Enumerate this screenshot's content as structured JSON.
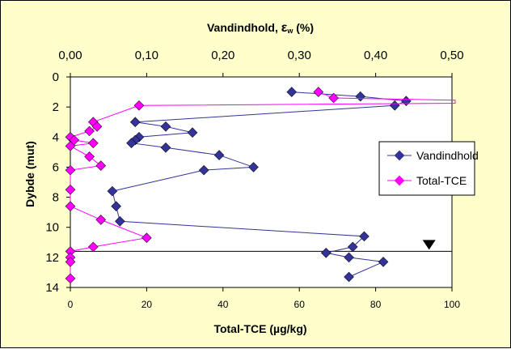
{
  "chart_data": {
    "type": "scatter",
    "title": "",
    "x2label_main": "Vandindhold, ",
    "x2label_symbol": "ε",
    "x2label_sub": "w",
    "x2label_unit": " (%)",
    "xlabel": "Total-TCE (µg/kg)",
    "ylabel": "Dybde (mut)",
    "ylim": [
      0,
      14
    ],
    "y_inverted": true,
    "yticks": [
      "0",
      "2",
      "4",
      "6",
      "8",
      "10",
      "12",
      "14"
    ],
    "xlim_top": [
      0,
      0.5
    ],
    "xticks_top": [
      "0,00",
      "0,10",
      "0,20",
      "0,30",
      "0,40",
      "0,50"
    ],
    "xlim_bottom": [
      0,
      100
    ],
    "xticks_bottom": [
      "0",
      "20",
      "40",
      "60",
      "80",
      "100"
    ],
    "legend_position": "right",
    "water_table_depth": 11.6,
    "water_table_x_top": 0.47,
    "series": [
      {
        "name": "Vandindhold",
        "axis": "top",
        "color": "#333399",
        "points": [
          {
            "x": 0.29,
            "y": 1.0
          },
          {
            "x": 0.38,
            "y": 1.3
          },
          {
            "x": 0.44,
            "y": 1.6
          },
          {
            "x": 0.425,
            "y": 1.9
          },
          {
            "x": 0.085,
            "y": 3.0
          },
          {
            "x": 0.125,
            "y": 3.3
          },
          {
            "x": 0.16,
            "y": 3.7
          },
          {
            "x": 0.09,
            "y": 4.0
          },
          {
            "x": 0.085,
            "y": 4.2
          },
          {
            "x": 0.08,
            "y": 4.4
          },
          {
            "x": 0.125,
            "y": 4.7
          },
          {
            "x": 0.195,
            "y": 5.2
          },
          {
            "x": 0.24,
            "y": 6.0
          },
          {
            "x": 0.175,
            "y": 6.2
          },
          {
            "x": 0.055,
            "y": 7.6
          },
          {
            "x": 0.06,
            "y": 8.6
          },
          {
            "x": 0.065,
            "y": 9.6
          },
          {
            "x": 0.385,
            "y": 10.6
          },
          {
            "x": 0.37,
            "y": 11.3
          },
          {
            "x": 0.335,
            "y": 11.7
          },
          {
            "x": 0.365,
            "y": 12.0
          },
          {
            "x": 0.41,
            "y": 12.3
          },
          {
            "x": 0.365,
            "y": 13.3
          }
        ]
      },
      {
        "name": "Total-TCE",
        "axis": "bottom",
        "color": "#ff00ff",
        "points": [
          {
            "x": 65,
            "y": 1.0
          },
          {
            "x": 69,
            "y": 1.4
          },
          {
            "x": 101,
            "y": 1.55
          },
          {
            "x": 101,
            "y": 1.75
          },
          {
            "x": 18,
            "y": 1.9
          },
          {
            "x": 6,
            "y": 3.0
          },
          {
            "x": 7,
            "y": 3.3
          },
          {
            "x": 5,
            "y": 3.6
          },
          {
            "x": 0,
            "y": 4.0
          },
          {
            "x": 1,
            "y": 4.2
          },
          {
            "x": 6,
            "y": 4.4
          },
          {
            "x": 0,
            "y": 4.6
          },
          {
            "x": 5,
            "y": 5.3
          },
          {
            "x": 8,
            "y": 5.9
          },
          {
            "x": 0,
            "y": 6.2
          },
          {
            "x": 0,
            "y": 7.5
          },
          {
            "x": 0,
            "y": 8.6
          },
          {
            "x": 8,
            "y": 9.5
          },
          {
            "x": 20,
            "y": 10.7
          },
          {
            "x": 6,
            "y": 11.3
          },
          {
            "x": 0,
            "y": 11.6
          },
          {
            "x": 0,
            "y": 12.0
          },
          {
            "x": 0,
            "y": 12.3
          },
          {
            "x": 0,
            "y": 13.4
          }
        ]
      }
    ]
  }
}
